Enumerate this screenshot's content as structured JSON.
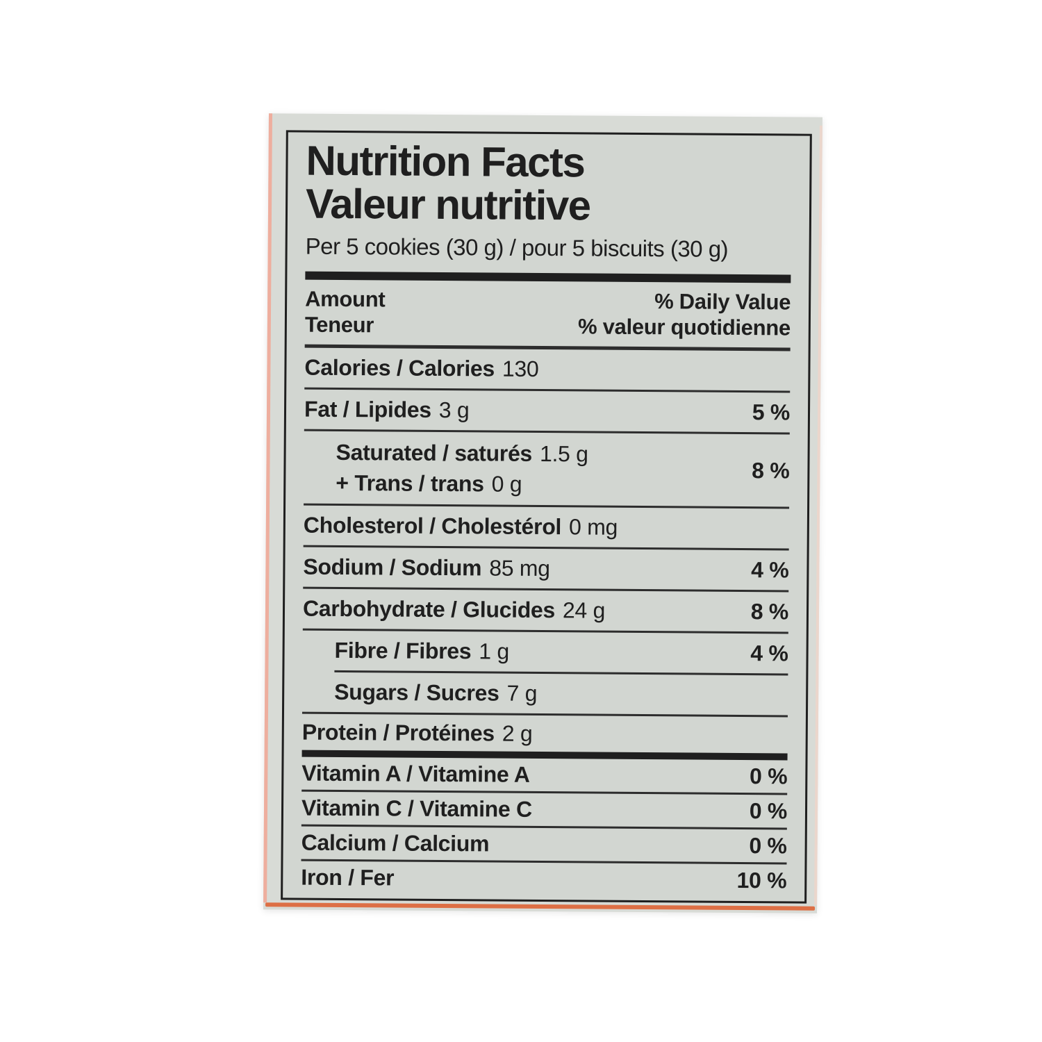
{
  "colors": {
    "page-bg": "#ffffff",
    "box-bg": "#d8dbd6",
    "panel-bg": "#d2d6d1",
    "ink": "#1f1f1f",
    "rule": "#2d2d2d",
    "edge-left": "#eeae9e",
    "edge-bottom": "#dd6f45",
    "edge-right": "#f2d4c8"
  },
  "label": {
    "title_en": "Nutrition Facts",
    "title_fr": "Valeur nutritive",
    "serving": "Per 5 cookies (30 g) / pour 5 biscuits (30 g)",
    "header": {
      "amount_en": "Amount",
      "amount_fr": "Teneur",
      "daily_value_en": "% Daily Value",
      "daily_value_fr": "% valeur quotidienne"
    },
    "rows": {
      "calories": {
        "name": "Calories / Calories",
        "value": "130"
      },
      "fat": {
        "name": "Fat / Lipides",
        "value": "3 g",
        "dv": "5 %"
      },
      "saturated": {
        "name": "Saturated / saturés",
        "value": "1.5 g"
      },
      "trans": {
        "name": "+ Trans / trans",
        "value": "0 g",
        "dv": "8 %"
      },
      "cholesterol": {
        "name": "Cholesterol / Cholestérol",
        "value": "0 mg"
      },
      "sodium": {
        "name": "Sodium / Sodium",
        "value": "85 mg",
        "dv": "4 %"
      },
      "carbohydrate": {
        "name": "Carbohydrate / Glucides",
        "value": "24 g",
        "dv": "8 %"
      },
      "fibre": {
        "name": "Fibre / Fibres",
        "value": "1 g",
        "dv": "4 %"
      },
      "sugars": {
        "name": "Sugars / Sucres",
        "value": "7 g"
      },
      "protein": {
        "name": "Protein / Protéines",
        "value": "2 g"
      },
      "vitamin_a": {
        "name": "Vitamin A / Vitamine A",
        "dv": "0 %"
      },
      "vitamin_c": {
        "name": "Vitamin C / Vitamine C",
        "dv": "0 %"
      },
      "calcium": {
        "name": "Calcium / Calcium",
        "dv": "0 %"
      },
      "iron": {
        "name": "Iron / Fer",
        "dv": "10 %"
      }
    }
  }
}
